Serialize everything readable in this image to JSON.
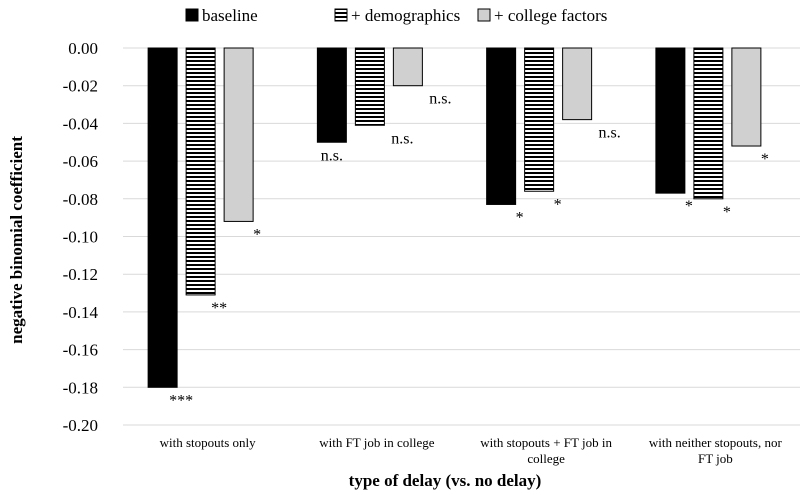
{
  "chart_data": {
    "type": "bar",
    "title": "",
    "xlabel": "type of delay (vs. no delay)",
    "ylabel": "negative binomial coefficient",
    "ylim": [
      -0.2,
      0.0
    ],
    "yticks": [
      "0.00",
      "-0.02",
      "-0.04",
      "-0.06",
      "-0.08",
      "-0.10",
      "-0.12",
      "-0.14",
      "-0.16",
      "-0.18",
      "-0.20"
    ],
    "grid": true,
    "legend_position": "top",
    "categories": [
      [
        "with stopouts only"
      ],
      [
        "with FT job in college"
      ],
      [
        "with stopouts + FT job in",
        "college"
      ],
      [
        "with neither stopouts, nor",
        "FT job"
      ]
    ],
    "series": [
      {
        "name": "baseline",
        "style": "solid",
        "color": "#000000",
        "values": [
          -0.18,
          -0.05,
          -0.083,
          -0.077
        ],
        "labels": [
          "***",
          "n.s.",
          "*",
          "*"
        ]
      },
      {
        "name": "+ demographics",
        "style": "horizontal-lines",
        "color": "#000000",
        "values": [
          -0.131,
          -0.041,
          -0.076,
          -0.08
        ],
        "labels": [
          "**",
          "n.s.",
          "*",
          "*"
        ]
      },
      {
        "name": "+ college factors",
        "style": "gray",
        "color": "#d0d0d0",
        "values": [
          -0.092,
          -0.02,
          -0.038,
          -0.052
        ],
        "labels": [
          "*",
          "n.s.",
          "n.s.",
          "*"
        ]
      }
    ]
  }
}
